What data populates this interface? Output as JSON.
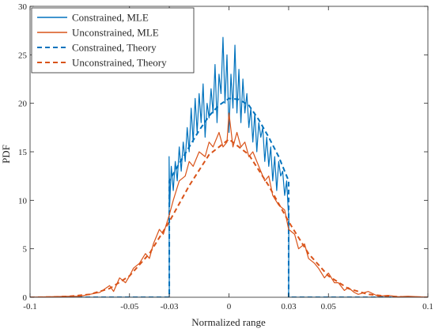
{
  "chart_data": {
    "type": "line",
    "title": "",
    "xlabel": "Normalized range",
    "ylabel": "PDF",
    "xlim": [
      -0.1,
      0.1
    ],
    "ylim": [
      0,
      30
    ],
    "xticks": [
      -0.1,
      -0.05,
      -0.03,
      0,
      0.03,
      0.05,
      0.1
    ],
    "xtick_labels": [
      "-0.1",
      "-0.05",
      "-0.03",
      "0",
      "0.03",
      "0.05",
      "0.1"
    ],
    "yticks": [
      0,
      5,
      10,
      15,
      20,
      25,
      30
    ],
    "ytick_labels": [
      "0",
      "5",
      "10",
      "15",
      "20",
      "25",
      "30"
    ],
    "grid": false,
    "legend_position": "top-left",
    "colors": {
      "blue": "#0072BD",
      "orange": "#D95319"
    },
    "series": [
      {
        "name": "Constrained, MLE",
        "color": "#0072BD",
        "style": "solid",
        "x": [
          -0.1,
          -0.03,
          -0.0301,
          -0.0298,
          -0.029,
          -0.028,
          -0.027,
          -0.026,
          -0.025,
          -0.024,
          -0.023,
          -0.022,
          -0.021,
          -0.02,
          -0.019,
          -0.018,
          -0.017,
          -0.016,
          -0.015,
          -0.014,
          -0.013,
          -0.012,
          -0.011,
          -0.01,
          -0.009,
          -0.008,
          -0.007,
          -0.006,
          -0.005,
          -0.004,
          -0.003,
          -0.002,
          -0.001,
          0.0,
          0.001,
          0.002,
          0.003,
          0.004,
          0.005,
          0.006,
          0.007,
          0.008,
          0.009,
          0.01,
          0.011,
          0.012,
          0.013,
          0.014,
          0.015,
          0.016,
          0.017,
          0.018,
          0.019,
          0.02,
          0.021,
          0.022,
          0.023,
          0.024,
          0.025,
          0.026,
          0.027,
          0.028,
          0.029,
          0.0298,
          0.0301,
          0.03,
          0.1
        ],
        "y": [
          0,
          0,
          14.5,
          9.5,
          13.5,
          11.0,
          14.0,
          12.0,
          15.5,
          13.0,
          16.0,
          14.0,
          17.5,
          15.0,
          19.5,
          16.0,
          20.5,
          17.0,
          21.0,
          18.0,
          22.0,
          16.5,
          20.0,
          18.5,
          21.5,
          19.0,
          24.0,
          18.0,
          23.0,
          21.0,
          26.8,
          20.0,
          25.0,
          17.0,
          23.0,
          19.5,
          26.0,
          19.0,
          23.5,
          18.0,
          22.5,
          19.0,
          21.0,
          17.5,
          19.5,
          16.0,
          19.0,
          15.0,
          18.0,
          16.5,
          17.5,
          14.0,
          16.5,
          13.5,
          15.5,
          12.0,
          14.5,
          11.0,
          14.0,
          12.5,
          13.0,
          10.5,
          12.0,
          9.0,
          8.5,
          0,
          0
        ]
      },
      {
        "name": "Unconstrained, MLE",
        "color": "#D95319",
        "style": "solid",
        "x": [
          -0.1,
          -0.08,
          -0.075,
          -0.07,
          -0.065,
          -0.06,
          -0.058,
          -0.055,
          -0.052,
          -0.05,
          -0.048,
          -0.045,
          -0.042,
          -0.04,
          -0.038,
          -0.035,
          -0.033,
          -0.03,
          -0.028,
          -0.025,
          -0.022,
          -0.02,
          -0.018,
          -0.015,
          -0.012,
          -0.01,
          -0.008,
          -0.005,
          -0.003,
          -0.001,
          0.0,
          0.002,
          0.004,
          0.006,
          0.008,
          0.01,
          0.012,
          0.015,
          0.018,
          0.02,
          0.022,
          0.025,
          0.028,
          0.03,
          0.033,
          0.035,
          0.038,
          0.04,
          0.043,
          0.045,
          0.048,
          0.05,
          0.053,
          0.055,
          0.058,
          0.06,
          0.063,
          0.065,
          0.07,
          0.075,
          0.08,
          0.085,
          0.09,
          0.1
        ],
        "y": [
          0,
          0.1,
          0.1,
          0.3,
          0.5,
          1.2,
          0.6,
          2.0,
          1.5,
          2.2,
          3.0,
          3.5,
          4.5,
          4.0,
          5.5,
          7.0,
          6.5,
          8.5,
          10.0,
          12.0,
          12.5,
          14.0,
          13.5,
          15.0,
          14.5,
          16.0,
          15.5,
          17.0,
          15.5,
          16.0,
          19.0,
          15.5,
          17.0,
          15.5,
          16.0,
          14.5,
          15.0,
          13.5,
          12.0,
          12.5,
          10.5,
          9.5,
          9.0,
          7.0,
          6.5,
          5.0,
          5.5,
          4.0,
          3.5,
          3.0,
          2.0,
          2.5,
          1.5,
          1.5,
          0.7,
          1.0,
          0.5,
          0.3,
          0.6,
          0.1,
          0.2,
          0.05,
          0.1,
          0
        ]
      },
      {
        "name": "Constrained, Theory",
        "color": "#0072BD",
        "style": "dashed",
        "x": [
          -0.1,
          -0.03,
          -0.03,
          -0.025,
          -0.02,
          -0.015,
          -0.01,
          -0.005,
          0.0,
          0.005,
          0.01,
          0.015,
          0.02,
          0.025,
          0.03,
          0.03,
          0.1
        ],
        "y": [
          0,
          0,
          12.0,
          13.8,
          15.5,
          17.2,
          18.7,
          19.8,
          20.5,
          20.4,
          19.8,
          18.3,
          16.5,
          14.5,
          12.0,
          0,
          0
        ]
      },
      {
        "name": "Unconstrained, Theory",
        "color": "#D95319",
        "style": "dashed",
        "x": [
          -0.1,
          -0.09,
          -0.08,
          -0.07,
          -0.06,
          -0.05,
          -0.04,
          -0.03,
          -0.02,
          -0.01,
          0.0,
          0.01,
          0.02,
          0.03,
          0.04,
          0.05,
          0.06,
          0.07,
          0.08,
          0.09,
          0.1
        ],
        "y": [
          0,
          0.02,
          0.1,
          0.3,
          0.9,
          2.2,
          4.5,
          7.8,
          11.5,
          14.7,
          16.3,
          14.7,
          11.5,
          7.8,
          4.5,
          2.2,
          0.9,
          0.3,
          0.1,
          0.02,
          0
        ]
      }
    ]
  }
}
